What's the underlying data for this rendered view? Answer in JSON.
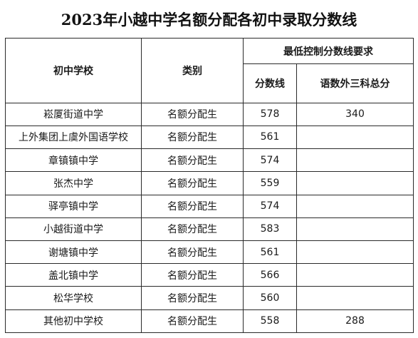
{
  "title": "2023年小越中学名额分配各初中录取分数线",
  "headers": {
    "school": "初中学校",
    "category": "类别",
    "group": "最低控制分数线要求",
    "score_line": "分数线",
    "total_three": "语数外三科总分"
  },
  "rows": [
    {
      "school": "崧厦街道中学",
      "category": "名额分配生",
      "score": "578",
      "total": "340"
    },
    {
      "school": "上外集团上虞外国语学校",
      "category": "名额分配生",
      "score": "561",
      "total": ""
    },
    {
      "school": "章镇镇中学",
      "category": "名额分配生",
      "score": "574",
      "total": ""
    },
    {
      "school": "张杰中学",
      "category": "名额分配生",
      "score": "559",
      "total": ""
    },
    {
      "school": "驿亭镇中学",
      "category": "名额分配生",
      "score": "574",
      "total": ""
    },
    {
      "school": "小越街道中学",
      "category": "名额分配生",
      "score": "583",
      "total": ""
    },
    {
      "school": "谢塘镇中学",
      "category": "名额分配生",
      "score": "561",
      "total": ""
    },
    {
      "school": "盖北镇中学",
      "category": "名额分配生",
      "score": "566",
      "total": ""
    },
    {
      "school": "松华学校",
      "category": "名额分配生",
      "score": "560",
      "total": ""
    },
    {
      "school": "其他初中学校",
      "category": "名额分配生",
      "score": "558",
      "total": "288"
    }
  ]
}
